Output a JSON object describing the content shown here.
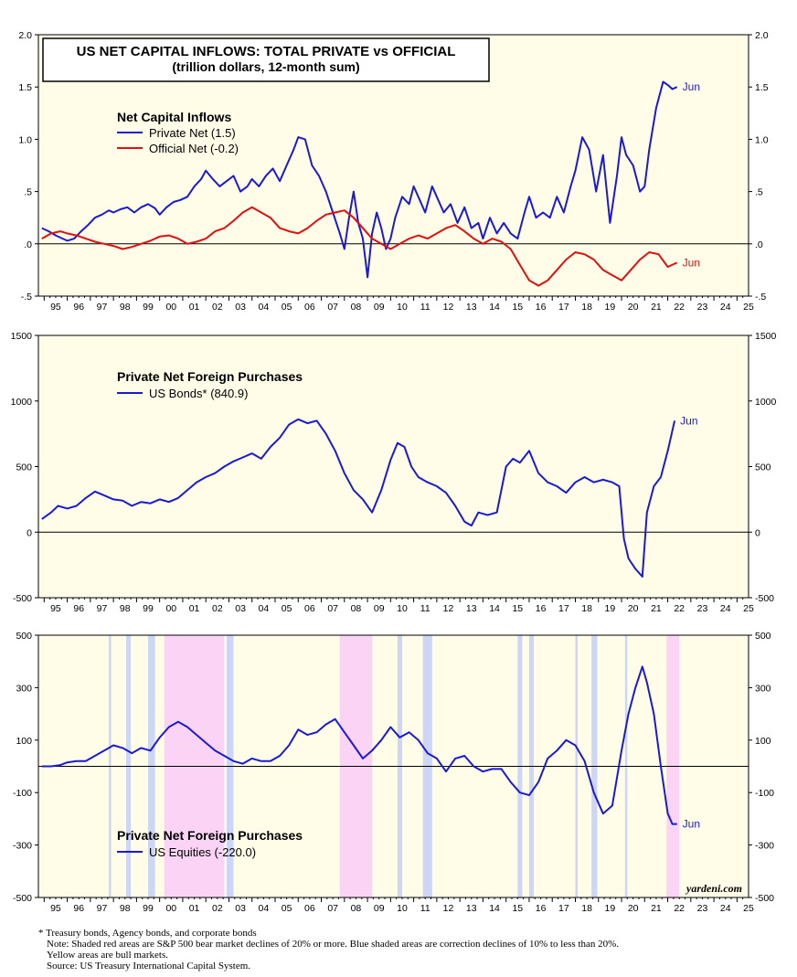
{
  "chart_data": [
    {
      "type": "line",
      "title": "US NET CAPITAL INFLOWS: TOTAL PRIVATE vs OFFICIAL",
      "subtitle": "(trillion dollars, 12-month sum)",
      "legend_title": "Net Capital Inflows",
      "ylim": [
        -0.5,
        2.0
      ],
      "yticks": [
        "2.0",
        "1.5",
        "1.0",
        ".5",
        ".0",
        "-.5"
      ],
      "ytick_values": [
        2.0,
        1.5,
        1.0,
        0.5,
        0.0,
        -0.5
      ],
      "xlim": [
        1994.75,
        2025.5
      ],
      "x_tick_labels": [
        "95",
        "96",
        "97",
        "98",
        "99",
        "00",
        "01",
        "02",
        "03",
        "04",
        "05",
        "06",
        "07",
        "08",
        "09",
        "10",
        "11",
        "12",
        "13",
        "14",
        "15",
        "16",
        "17",
        "18",
        "19",
        "20",
        "21",
        "22",
        "23",
        "24",
        "25"
      ],
      "series": [
        {
          "name": "Private Net (1.5)",
          "color": "#1a1ad4",
          "end_label": "Jun",
          "x": [
            1994.9,
            1995.2,
            1995.5,
            1995.8,
            1996.0,
            1996.3,
            1996.6,
            1996.9,
            1997.2,
            1997.5,
            1997.8,
            1998.0,
            1998.3,
            1998.6,
            1998.9,
            1999.2,
            1999.5,
            1999.8,
            2000.0,
            2000.3,
            2000.6,
            2000.9,
            2001.2,
            2001.5,
            2001.8,
            2002.0,
            2002.3,
            2002.6,
            2002.9,
            2003.2,
            2003.5,
            2003.8,
            2004.0,
            2004.3,
            2004.6,
            2004.9,
            2005.2,
            2005.5,
            2005.8,
            2006.0,
            2006.3,
            2006.6,
            2006.9,
            2007.2,
            2007.5,
            2007.8,
            2008.0,
            2008.2,
            2008.4,
            2008.6,
            2008.8,
            2009.0,
            2009.2,
            2009.4,
            2009.6,
            2009.8,
            2010.0,
            2010.2,
            2010.5,
            2010.8,
            2011.0,
            2011.2,
            2011.5,
            2011.8,
            2012.0,
            2012.3,
            2012.6,
            2012.9,
            2013.2,
            2013.5,
            2013.8,
            2014.0,
            2014.3,
            2014.6,
            2014.9,
            2015.2,
            2015.5,
            2015.8,
            2016.0,
            2016.3,
            2016.6,
            2016.9,
            2017.2,
            2017.5,
            2017.8,
            2018.0,
            2018.3,
            2018.6,
            2018.9,
            2019.2,
            2019.5,
            2019.8,
            2020.0,
            2020.2,
            2020.5,
            2020.8,
            2021.0,
            2021.2,
            2021.5,
            2021.8,
            2022.0,
            2022.2,
            2022.4
          ],
          "values": [
            0.15,
            0.12,
            0.08,
            0.05,
            0.03,
            0.05,
            0.12,
            0.18,
            0.25,
            0.28,
            0.32,
            0.3,
            0.33,
            0.35,
            0.3,
            0.35,
            0.38,
            0.34,
            0.28,
            0.35,
            0.4,
            0.42,
            0.45,
            0.55,
            0.62,
            0.7,
            0.62,
            0.55,
            0.6,
            0.65,
            0.5,
            0.55,
            0.62,
            0.55,
            0.65,
            0.72,
            0.6,
            0.75,
            0.9,
            1.02,
            1.0,
            0.75,
            0.65,
            0.5,
            0.3,
            0.1,
            -0.05,
            0.25,
            0.5,
            0.2,
            0.05,
            -0.32,
            0.1,
            0.3,
            0.15,
            -0.05,
            0.05,
            0.25,
            0.45,
            0.38,
            0.55,
            0.45,
            0.3,
            0.55,
            0.45,
            0.3,
            0.38,
            0.2,
            0.35,
            0.15,
            0.2,
            0.05,
            0.25,
            0.1,
            0.2,
            0.1,
            0.05,
            0.3,
            0.45,
            0.25,
            0.3,
            0.25,
            0.45,
            0.3,
            0.55,
            0.7,
            1.02,
            0.9,
            0.5,
            0.85,
            0.2,
            0.65,
            1.02,
            0.85,
            0.75,
            0.5,
            0.55,
            0.9,
            1.3,
            1.55,
            1.52,
            1.48,
            1.5
          ]
        },
        {
          "name": "Official Net (-0.2)",
          "color": "#e01010",
          "end_label": "Jun",
          "x": [
            1994.9,
            1995.3,
            1995.7,
            1996.0,
            1996.4,
            1996.8,
            1997.2,
            1997.6,
            1998.0,
            1998.4,
            1998.8,
            1999.2,
            1999.6,
            2000.0,
            2000.4,
            2000.8,
            2001.2,
            2001.6,
            2002.0,
            2002.4,
            2002.8,
            2003.2,
            2003.6,
            2004.0,
            2004.4,
            2004.8,
            2005.2,
            2005.6,
            2006.0,
            2006.4,
            2006.8,
            2007.2,
            2007.6,
            2008.0,
            2008.4,
            2008.8,
            2009.2,
            2009.6,
            2010.0,
            2010.4,
            2010.8,
            2011.2,
            2011.6,
            2012.0,
            2012.4,
            2012.8,
            2013.2,
            2013.6,
            2014.0,
            2014.4,
            2014.8,
            2015.2,
            2015.6,
            2016.0,
            2016.4,
            2016.8,
            2017.2,
            2017.6,
            2018.0,
            2018.4,
            2018.8,
            2019.2,
            2019.6,
            2020.0,
            2020.4,
            2020.8,
            2021.2,
            2021.6,
            2022.0,
            2022.4
          ],
          "values": [
            0.05,
            0.1,
            0.12,
            0.1,
            0.08,
            0.05,
            0.02,
            0.0,
            -0.02,
            -0.05,
            -0.03,
            0.0,
            0.03,
            0.07,
            0.08,
            0.05,
            0.0,
            0.02,
            0.05,
            0.12,
            0.15,
            0.22,
            0.3,
            0.35,
            0.3,
            0.25,
            0.15,
            0.12,
            0.1,
            0.15,
            0.22,
            0.28,
            0.3,
            0.32,
            0.25,
            0.15,
            0.05,
            0.0,
            -0.05,
            0.0,
            0.05,
            0.08,
            0.05,
            0.1,
            0.15,
            0.18,
            0.12,
            0.05,
            0.0,
            0.05,
            0.02,
            -0.05,
            -0.2,
            -0.35,
            -0.4,
            -0.35,
            -0.25,
            -0.15,
            -0.08,
            -0.1,
            -0.15,
            -0.25,
            -0.3,
            -0.35,
            -0.25,
            -0.15,
            -0.08,
            -0.1,
            -0.22,
            -0.18
          ]
        }
      ]
    },
    {
      "type": "line",
      "legend_title": "Private Net Foreign Purchases",
      "ylim": [
        -500,
        1500
      ],
      "yticks": [
        "1500",
        "1000",
        "500",
        "0",
        "-500"
      ],
      "ytick_values": [
        1500,
        1000,
        500,
        0,
        -500
      ],
      "xlim": [
        1994.75,
        2025.5
      ],
      "x_tick_labels": [
        "95",
        "96",
        "97",
        "98",
        "99",
        "00",
        "01",
        "02",
        "03",
        "04",
        "05",
        "06",
        "07",
        "08",
        "09",
        "10",
        "11",
        "12",
        "13",
        "14",
        "15",
        "16",
        "17",
        "18",
        "19",
        "20",
        "21",
        "22",
        "23",
        "24",
        "25"
      ],
      "series": [
        {
          "name": "US Bonds* (840.9)",
          "color": "#1a1ad4",
          "end_label": "Jun",
          "x": [
            1994.9,
            1995.3,
            1995.6,
            1996.0,
            1996.4,
            1996.8,
            1997.2,
            1997.6,
            1998.0,
            1998.4,
            1998.8,
            1999.2,
            1999.6,
            2000.0,
            2000.4,
            2000.8,
            2001.2,
            2001.6,
            2002.0,
            2002.4,
            2002.8,
            2003.2,
            2003.6,
            2004.0,
            2004.4,
            2004.8,
            2005.2,
            2005.6,
            2006.0,
            2006.4,
            2006.8,
            2007.2,
            2007.6,
            2008.0,
            2008.4,
            2008.8,
            2009.2,
            2009.6,
            2010.0,
            2010.3,
            2010.6,
            2010.9,
            2011.2,
            2011.6,
            2012.0,
            2012.4,
            2012.8,
            2013.2,
            2013.5,
            2013.8,
            2014.2,
            2014.6,
            2015.0,
            2015.3,
            2015.6,
            2016.0,
            2016.4,
            2016.8,
            2017.2,
            2017.6,
            2018.0,
            2018.4,
            2018.8,
            2019.2,
            2019.6,
            2019.9,
            2020.1,
            2020.3,
            2020.6,
            2020.9,
            2021.1,
            2021.4,
            2021.7,
            2022.0,
            2022.3
          ],
          "values": [
            100,
            150,
            200,
            180,
            200,
            260,
            310,
            280,
            250,
            240,
            200,
            230,
            220,
            250,
            230,
            260,
            320,
            380,
            420,
            450,
            500,
            540,
            570,
            600,
            560,
            650,
            720,
            820,
            860,
            830,
            850,
            750,
            620,
            450,
            320,
            250,
            150,
            320,
            550,
            680,
            650,
            500,
            420,
            380,
            350,
            300,
            200,
            80,
            50,
            150,
            130,
            150,
            500,
            560,
            530,
            620,
            450,
            380,
            350,
            300,
            380,
            420,
            380,
            400,
            380,
            350,
            -50,
            -200,
            -280,
            -340,
            150,
            350,
            420,
            620,
            850
          ]
        }
      ]
    },
    {
      "type": "line",
      "legend_title": "Private Net Foreign Purchases",
      "ylim": [
        -500,
        500
      ],
      "yticks": [
        "500",
        "300",
        "100",
        "-100",
        "-300",
        "-500"
      ],
      "ytick_values": [
        500,
        300,
        100,
        -100,
        -300,
        -500
      ],
      "xlim": [
        1994.75,
        2025.5
      ],
      "x_tick_labels": [
        "95",
        "96",
        "97",
        "98",
        "99",
        "00",
        "01",
        "02",
        "03",
        "04",
        "05",
        "06",
        "07",
        "08",
        "09",
        "10",
        "11",
        "12",
        "13",
        "14",
        "15",
        "16",
        "17",
        "18",
        "19",
        "20",
        "21",
        "22",
        "23",
        "24",
        "25"
      ],
      "red_shades": [
        [
          2000.2,
          2002.8
        ],
        [
          2007.8,
          2009.2
        ],
        [
          2021.95,
          2022.5
        ]
      ],
      "blue_shades": [
        [
          1997.8,
          1997.9
        ],
        [
          1998.55,
          1998.75
        ],
        [
          1999.5,
          1999.8
        ],
        [
          2002.9,
          2003.2
        ],
        [
          2010.3,
          2010.5
        ],
        [
          2011.4,
          2011.8
        ],
        [
          2015.5,
          2015.7
        ],
        [
          2016.0,
          2016.2
        ],
        [
          2018.0,
          2018.1
        ],
        [
          2018.7,
          2018.95
        ],
        [
          2020.15,
          2020.25
        ]
      ],
      "series": [
        {
          "name": "US Equities (-220.0)",
          "color": "#1a1ad4",
          "end_label": "Jun",
          "x": [
            1994.9,
            1995.3,
            1995.7,
            1996.0,
            1996.4,
            1996.8,
            1997.2,
            1997.6,
            1998.0,
            1998.4,
            1998.8,
            1999.2,
            1999.6,
            2000.0,
            2000.4,
            2000.8,
            2001.2,
            2001.6,
            2002.0,
            2002.4,
            2002.8,
            2003.2,
            2003.6,
            2004.0,
            2004.4,
            2004.8,
            2005.2,
            2005.6,
            2006.0,
            2006.4,
            2006.8,
            2007.2,
            2007.6,
            2008.0,
            2008.4,
            2008.8,
            2009.2,
            2009.6,
            2010.0,
            2010.4,
            2010.8,
            2011.2,
            2011.6,
            2012.0,
            2012.4,
            2012.8,
            2013.2,
            2013.6,
            2014.0,
            2014.4,
            2014.8,
            2015.2,
            2015.6,
            2016.0,
            2016.4,
            2016.8,
            2017.2,
            2017.6,
            2018.0,
            2018.4,
            2018.8,
            2019.2,
            2019.6,
            2020.0,
            2020.3,
            2020.6,
            2020.9,
            2021.1,
            2021.4,
            2021.7,
            2022.0,
            2022.2,
            2022.4
          ],
          "values": [
            0,
            0,
            5,
            15,
            20,
            20,
            40,
            60,
            80,
            70,
            50,
            70,
            60,
            110,
            150,
            170,
            150,
            120,
            90,
            60,
            40,
            20,
            10,
            30,
            20,
            20,
            40,
            80,
            140,
            120,
            130,
            160,
            180,
            130,
            80,
            30,
            60,
            100,
            150,
            110,
            130,
            100,
            50,
            30,
            -20,
            30,
            40,
            0,
            -20,
            -10,
            -10,
            -60,
            -100,
            -110,
            -60,
            30,
            60,
            100,
            80,
            20,
            -100,
            -180,
            -150,
            60,
            200,
            300,
            380,
            320,
            200,
            0,
            -180,
            -220,
            -220
          ]
        }
      ]
    }
  ],
  "footnotes": [
    "* Treasury bonds, Agency bonds, and corporate bonds",
    "Note: Shaded red areas are S&P 500 bear market declines of 20% or more.  Blue shaded areas are correction declines of 10% to less than 20%.",
    "Yellow areas are bull markets.",
    "Source: US Treasury International Capital System."
  ],
  "watermark": "yardeni.com",
  "colors": {
    "plot_bg": "#fffde8",
    "red_shade": "#fbd3f5",
    "blue_shade": "#cdd6f7",
    "axis": "#000000"
  }
}
